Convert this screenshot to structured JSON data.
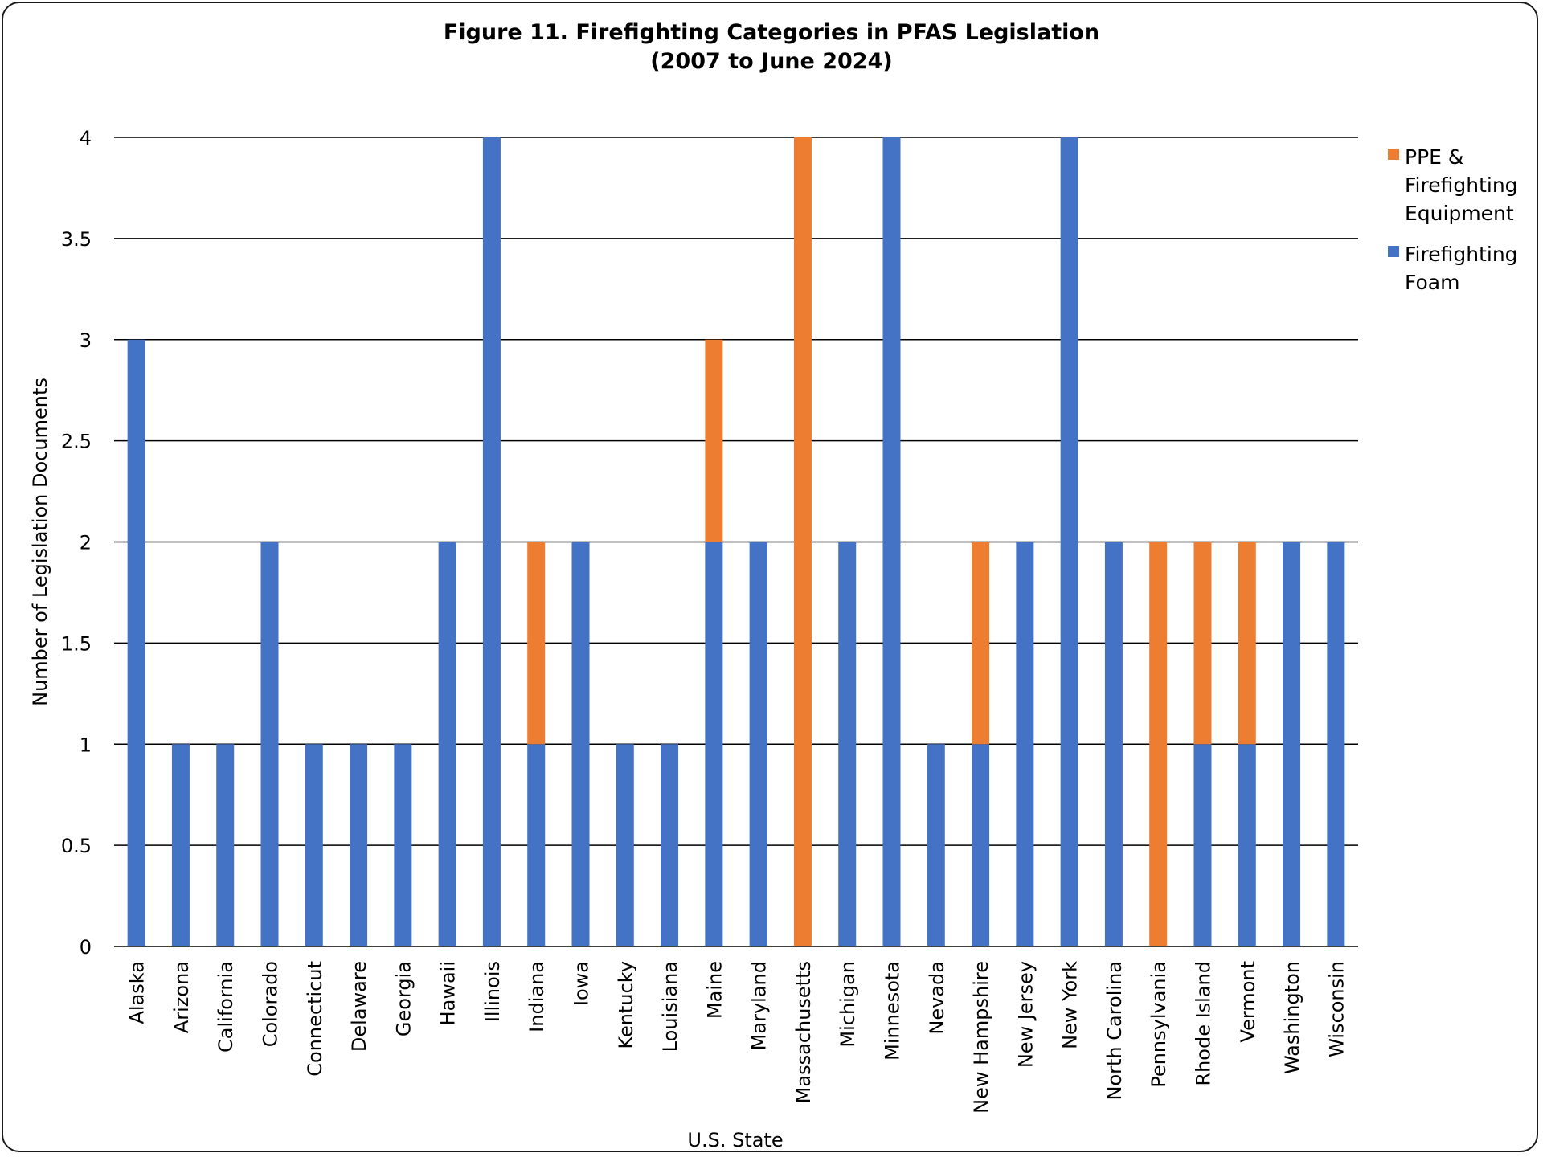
{
  "chart_data": {
    "type": "bar",
    "stacked": true,
    "title": "Figure 11. Firefighting Categories in PFAS Legislation",
    "subtitle": "(2007 to June 2024)",
    "xlabel": "U.S. State",
    "ylabel": "Number of Legislation Documents",
    "ylim": [
      0,
      4
    ],
    "yticks": [
      "0",
      "0.5",
      "1",
      "1.5",
      "2",
      "2.5",
      "3",
      "3.5",
      "4"
    ],
    "grid": true,
    "legend_position": "right",
    "categories": [
      "Alaska",
      "Arizona",
      "California",
      "Colorado",
      "Connecticut",
      "Delaware",
      "Georgia",
      "Hawaii",
      "Illinois",
      "Indiana",
      "Iowa",
      "Kentucky",
      "Louisiana",
      "Maine",
      "Maryland",
      "Massachusetts",
      "Michigan",
      "Minnesota",
      "Nevada",
      "New Hampshire",
      "New Jersey",
      "New York",
      "North Carolina",
      "Pennsylvania",
      "Rhode Island",
      "Vermont",
      "Washington",
      "Wisconsin"
    ],
    "series": [
      {
        "name": "Firefighting Foam",
        "color": "#4472c4",
        "values": [
          3,
          1,
          1,
          2,
          1,
          1,
          1,
          2,
          4,
          1,
          2,
          1,
          1,
          2,
          2,
          0,
          2,
          4,
          1,
          1,
          2,
          4,
          2,
          0,
          1,
          1,
          2,
          2
        ]
      },
      {
        "name": "PPE & Firefighting Equipment",
        "color": "#ed7d31",
        "values": [
          0,
          0,
          0,
          0,
          0,
          0,
          0,
          0,
          0,
          1,
          0,
          0,
          0,
          1,
          0,
          4,
          0,
          0,
          0,
          1,
          0,
          0,
          0,
          2,
          1,
          1,
          0,
          0
        ]
      }
    ],
    "legend": [
      {
        "lines": [
          "PPE &",
          "Firefighting",
          "Equipment"
        ],
        "color": "#ed7d31"
      },
      {
        "lines": [
          "Firefighting",
          "Foam"
        ],
        "color": "#4472c4"
      }
    ]
  }
}
